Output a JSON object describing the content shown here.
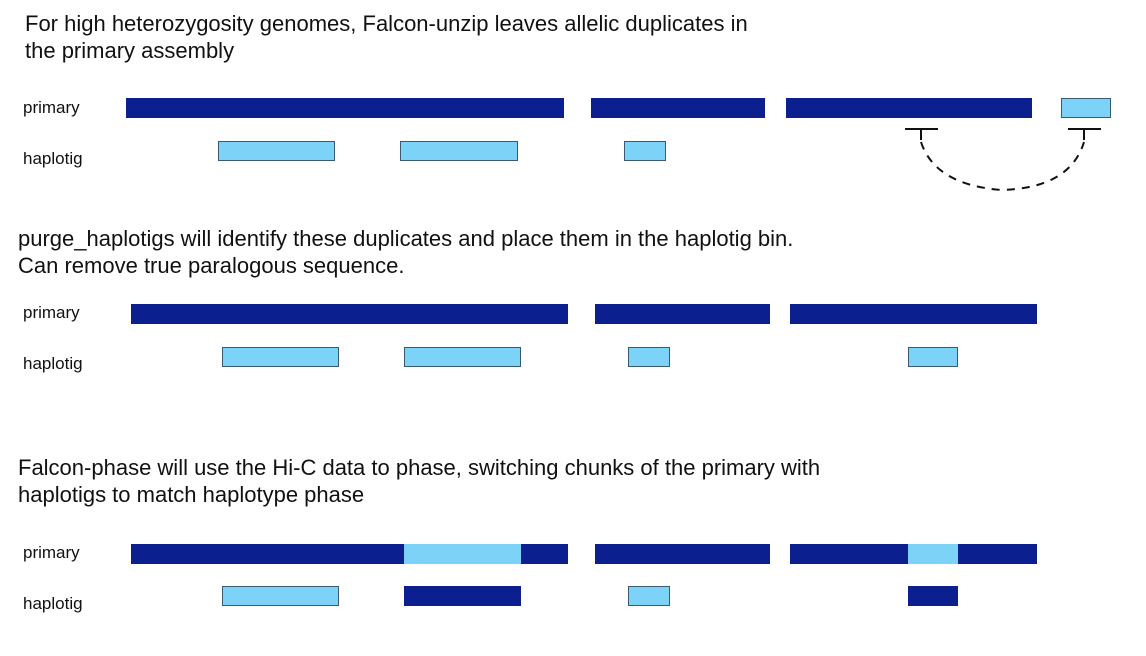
{
  "panels": [
    {
      "heading_lines": [
        "For high heterozygosity genomes, Falcon-unzip leaves allelic duplicates in",
        "the primary assembly"
      ],
      "primary_label": "primary",
      "haplotig_label": "haplotig"
    },
    {
      "heading_lines": [
        "purge_haplotigs will identify these duplicates and place them in the haplotig bin.",
        "Can remove true paralogous sequence."
      ],
      "primary_label": "primary",
      "haplotig_label": "haplotig"
    },
    {
      "heading_lines": [
        "Falcon-phase will use the Hi-C data to phase, switching chunks of the primary with",
        "haplotigs to match haplotype phase"
      ],
      "primary_label": "primary",
      "haplotig_label": "haplotig"
    }
  ],
  "colors": {
    "primary": "#0b1f8f",
    "haplotig": "#7dd3f7",
    "haplotig_border": "#3a5a70",
    "link": "#111111"
  }
}
